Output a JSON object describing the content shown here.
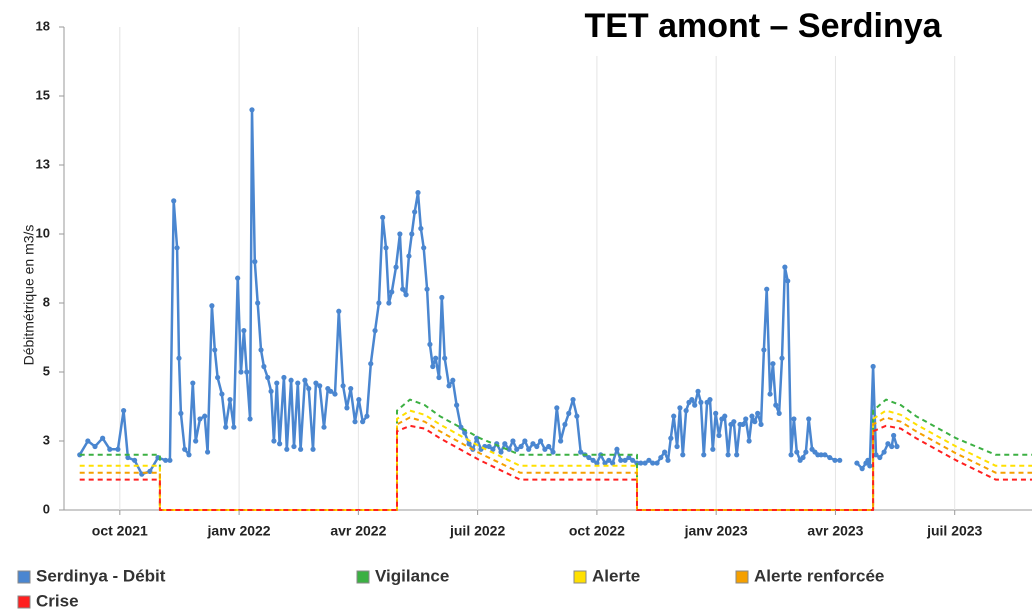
{
  "chart_data": {
    "type": "line",
    "title": "TET amont – Serdinya",
    "y_label": "Débitmétrique en m3/s",
    "xlim": [
      2021.633,
      2023.662
    ],
    "xticks": [
      {
        "value": 2021.75,
        "label": "oct 2021"
      },
      {
        "value": 2022.0,
        "label": "janv 2022"
      },
      {
        "value": 2022.25,
        "label": "avr 2022"
      },
      {
        "value": 2022.5,
        "label": "juil 2022"
      },
      {
        "value": 2022.75,
        "label": "oct 2022"
      },
      {
        "value": 2023.0,
        "label": "janv 2023"
      },
      {
        "value": 2023.25,
        "label": "avr 2023"
      },
      {
        "value": 2023.5,
        "label": "juil 2023"
      }
    ],
    "ylim": [
      0,
      17.5
    ],
    "yticks": [
      0,
      {
        "value": 2.5,
        "label": "3"
      },
      5,
      {
        "value": 7.5,
        "label": "8"
      },
      10,
      {
        "value": 12.5,
        "label": "13"
      },
      15,
      {
        "value": 17.5,
        "label": "18"
      }
    ],
    "grid": "x",
    "legend": "bottom",
    "series": [
      {
        "name": "Serdinya - Débit",
        "color": "#4a86d0",
        "markers": true,
        "dashed": false,
        "x": [
          2021.666,
          2021.683,
          2021.698,
          2021.714,
          2021.729,
          2021.746,
          2021.758,
          2021.767,
          2021.781,
          2021.796,
          2021.813,
          2021.83,
          2021.846,
          2021.855,
          2021.863,
          2021.87,
          2021.874,
          2021.878,
          2021.886,
          2021.895,
          2021.903,
          2021.909,
          2021.918,
          2021.928,
          2021.934,
          2021.943,
          2021.949,
          2021.955,
          2021.964,
          2021.972,
          2021.981,
          2021.989,
          2021.997,
          2022.004,
          2022.01,
          2022.016,
          2022.023,
          2022.027,
          2022.033,
          2022.039,
          2022.046,
          2022.052,
          2022.06,
          2022.067,
          2022.073,
          2022.079,
          2022.085,
          2022.094,
          2022.1,
          2022.109,
          2022.115,
          2022.123,
          2022.129,
          2022.138,
          2022.146,
          2022.155,
          2022.161,
          2022.169,
          2022.178,
          2022.186,
          2022.192,
          2022.201,
          2022.209,
          2022.218,
          2022.226,
          2022.234,
          2022.243,
          2022.251,
          2022.259,
          2022.268,
          2022.276,
          2022.285,
          2022.293,
          2022.301,
          2022.308,
          2022.314,
          2022.32,
          2022.329,
          2022.337,
          2022.343,
          2022.35,
          2022.356,
          2022.362,
          2022.368,
          2022.375,
          2022.381,
          2022.387,
          2022.394,
          2022.4,
          2022.406,
          2022.412,
          2022.419,
          2022.425,
          2022.431,
          2022.44,
          2022.448,
          2022.456,
          2022.465,
          2022.473,
          2022.482,
          2022.49,
          2022.498,
          2022.507,
          2022.515,
          2022.524,
          2022.532,
          2022.54,
          2022.549,
          2022.557,
          2022.566,
          2022.574,
          2022.582,
          2022.591,
          2022.599,
          2022.607,
          2022.616,
          2022.624,
          2022.632,
          2022.641,
          2022.649,
          2022.658,
          2022.666,
          2022.674,
          2022.683,
          2022.691,
          2022.7,
          2022.708,
          2022.716,
          2022.725,
          2022.733,
          2022.742,
          2022.75,
          2022.758,
          2022.767,
          2022.775,
          2022.783,
          2022.792,
          2022.8,
          2022.809,
          2022.817,
          2022.825,
          2022.834,
          2022.842,
          2022.851,
          2022.859,
          2022.867,
          2022.876,
          2022.884,
          2022.892,
          2022.899,
          2022.905,
          2022.911,
          2022.918,
          2022.924,
          2022.93,
          2022.937,
          2022.943,
          2022.949,
          2022.955,
          2022.962,
          2022.968,
          2022.974,
          2022.981,
          2022.987,
          2022.993,
          2022.999,
          2023.006,
          2023.012,
          2023.018,
          2023.025,
          2023.031,
          2023.037,
          2023.043,
          2023.05,
          2023.056,
          2023.062,
          2023.069,
          2023.075,
          2023.081,
          2023.087,
          2023.094,
          2023.1,
          2023.106,
          2023.113,
          2023.119,
          2023.125,
          2023.132,
          2023.138,
          2023.144,
          2023.15,
          2023.157,
          2023.163,
          2023.169,
          2023.176,
          2023.182,
          2023.188,
          2023.194,
          2023.201,
          2023.207,
          2023.213,
          2023.22,
          2023.228,
          2023.238,
          2023.249,
          2023.259,
          2023.27,
          2023.295,
          2023.306,
          2023.314,
          2023.318,
          2023.322,
          2023.329,
          2023.335,
          2023.343,
          2023.352,
          2023.36,
          2023.368,
          2023.372,
          2023.379
        ],
        "values": [
          2.0,
          2.5,
          2.3,
          2.6,
          2.2,
          2.2,
          3.6,
          1.9,
          1.8,
          1.3,
          1.4,
          1.9,
          1.8,
          1.8,
          11.2,
          9.5,
          5.5,
          3.5,
          2.2,
          2.0,
          4.6,
          2.5,
          3.3,
          3.4,
          2.1,
          7.4,
          5.8,
          4.8,
          4.2,
          3.0,
          4.0,
          3.0,
          8.4,
          5.0,
          6.5,
          5.0,
          3.3,
          14.5,
          9.0,
          7.5,
          5.8,
          5.2,
          4.8,
          4.3,
          2.5,
          4.6,
          2.4,
          4.8,
          2.2,
          4.7,
          2.3,
          4.6,
          2.2,
          4.7,
          4.4,
          2.2,
          4.6,
          4.5,
          3.0,
          4.4,
          4.3,
          4.2,
          7.2,
          4.5,
          3.7,
          4.4,
          3.2,
          4.0,
          3.2,
          3.4,
          5.3,
          6.5,
          7.5,
          10.6,
          9.5,
          7.5,
          7.9,
          8.8,
          10.0,
          8.0,
          7.8,
          9.2,
          10.0,
          10.8,
          11.5,
          10.2,
          9.5,
          8.0,
          6.0,
          5.2,
          5.5,
          4.8,
          7.7,
          5.5,
          4.5,
          4.7,
          3.8,
          3.0,
          2.8,
          2.4,
          2.2,
          2.6,
          2.2,
          2.3,
          2.3,
          2.2,
          2.4,
          2.1,
          2.4,
          2.2,
          2.5,
          2.2,
          2.3,
          2.5,
          2.2,
          2.4,
          2.3,
          2.5,
          2.2,
          2.3,
          2.1,
          3.7,
          2.5,
          3.1,
          3.5,
          4.0,
          3.4,
          2.1,
          2.0,
          1.9,
          1.8,
          1.7,
          2.0,
          1.7,
          1.8,
          1.7,
          2.2,
          1.8,
          1.8,
          1.9,
          1.8,
          1.7,
          1.7,
          1.7,
          1.8,
          1.7,
          1.7,
          1.9,
          2.1,
          1.8,
          2.6,
          3.4,
          2.3,
          3.7,
          2.0,
          3.6,
          3.9,
          4.0,
          3.8,
          4.3,
          3.9,
          2.0,
          3.9,
          4.0,
          2.2,
          3.5,
          2.7,
          3.3,
          3.4,
          2.0,
          3.1,
          3.2,
          2.0,
          3.1,
          3.1,
          3.3,
          2.5,
          3.4,
          3.2,
          3.5,
          3.1,
          5.8,
          8.0,
          4.2,
          5.3,
          3.8,
          3.5,
          5.5,
          8.8,
          8.3,
          2.0,
          3.3,
          2.1,
          1.8,
          1.9,
          2.1,
          3.3,
          2.2,
          2.1,
          2.0,
          2.0,
          2.0,
          1.9,
          1.8,
          1.8,
          null,
          1.7,
          1.5,
          1.7,
          1.8,
          1.6,
          5.2,
          2.0,
          1.9,
          2.1,
          2.4,
          2.3,
          2.7,
          2.3
        ]
      },
      {
        "name": "Vigilance",
        "color": "#3cb043",
        "markers": false,
        "dashed": true,
        "x": [
          2021.666,
          2021.834,
          2021.834,
          2022.331,
          2022.331,
          2022.358,
          2022.389,
          2022.421,
          2022.463,
          2022.505,
          2022.589,
          2022.834,
          2022.834,
          2023.329,
          2023.329,
          2023.356,
          2023.387,
          2023.419,
          2023.461,
          2023.503,
          2023.586,
          2023.662
        ],
        "values": [
          2.0,
          2.0,
          0,
          0,
          3.6,
          4.0,
          3.8,
          3.4,
          3.0,
          2.6,
          2.0,
          2.0,
          0,
          0,
          3.6,
          4.0,
          3.8,
          3.4,
          3.0,
          2.6,
          2.0,
          2.0
        ]
      },
      {
        "name": "Alerte",
        "color": "#ffe000",
        "markers": false,
        "dashed": true,
        "x": [
          2021.666,
          2021.834,
          2021.834,
          2022.331,
          2022.331,
          2022.358,
          2022.389,
          2022.421,
          2022.463,
          2022.505,
          2022.589,
          2022.834,
          2022.834,
          2023.329,
          2023.329,
          2023.356,
          2023.387,
          2023.419,
          2023.461,
          2023.503,
          2023.586,
          2023.662
        ],
        "values": [
          1.6,
          1.6,
          0,
          0,
          3.3,
          3.6,
          3.45,
          3.1,
          2.7,
          2.3,
          1.6,
          1.6,
          0,
          0,
          3.3,
          3.6,
          3.45,
          3.1,
          2.7,
          2.3,
          1.6,
          1.6
        ]
      },
      {
        "name": "Alerte renforcée",
        "color": "#f5a000",
        "markers": false,
        "dashed": true,
        "x": [
          2021.666,
          2021.834,
          2021.834,
          2022.331,
          2022.331,
          2022.358,
          2022.389,
          2022.421,
          2022.463,
          2022.505,
          2022.589,
          2022.834,
          2022.834,
          2023.329,
          2023.329,
          2023.356,
          2023.387,
          2023.419,
          2023.461,
          2023.503,
          2023.586,
          2023.662
        ],
        "values": [
          1.35,
          1.35,
          0,
          0,
          3.1,
          3.35,
          3.2,
          2.85,
          2.45,
          2.05,
          1.35,
          1.35,
          0,
          0,
          3.1,
          3.35,
          3.2,
          2.85,
          2.45,
          2.05,
          1.35,
          1.35
        ]
      },
      {
        "name": "Crise",
        "color": "#ff2020",
        "markers": false,
        "dashed": true,
        "x": [
          2021.666,
          2021.834,
          2021.834,
          2022.331,
          2022.331,
          2022.358,
          2022.389,
          2022.421,
          2022.463,
          2022.505,
          2022.589,
          2022.834,
          2022.834,
          2023.329,
          2023.329,
          2023.356,
          2023.387,
          2023.419,
          2023.461,
          2023.503,
          2023.586,
          2023.662
        ],
        "values": [
          1.1,
          1.1,
          0,
          0,
          2.85,
          3.05,
          2.95,
          2.6,
          2.2,
          1.8,
          1.1,
          1.1,
          0,
          0,
          2.85,
          3.05,
          2.95,
          2.6,
          2.2,
          1.8,
          1.1,
          1.1
        ]
      }
    ]
  }
}
